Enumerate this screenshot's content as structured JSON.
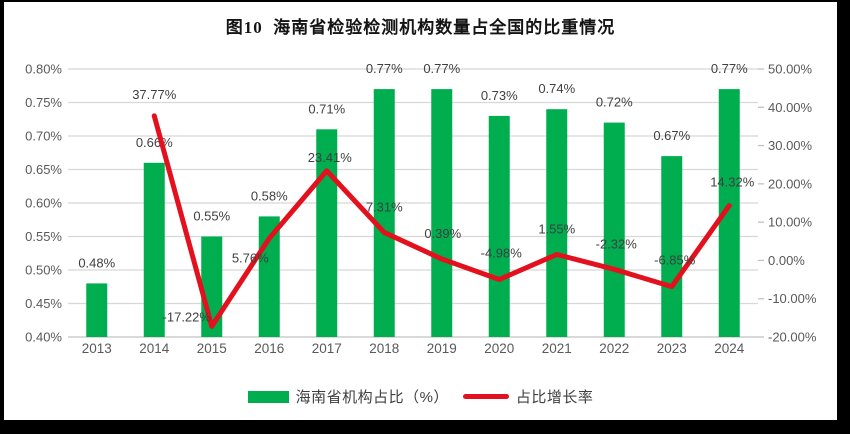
{
  "frame": {
    "background": "#000000",
    "panel_background": "#FFFFFF"
  },
  "chart_data": {
    "type": "bar+line combo",
    "title": "图10  海南省检验检测机构数量占全国的比重情况",
    "categories": [
      "2013",
      "2014",
      "2015",
      "2016",
      "2017",
      "2018",
      "2019",
      "2020",
      "2021",
      "2022",
      "2023",
      "2024"
    ],
    "series": [
      {
        "name": "海南省机构占比（%）",
        "type": "bar",
        "axis": "left",
        "color": "#00AE4F",
        "values": [
          0.48,
          0.66,
          0.55,
          0.58,
          0.71,
          0.77,
          0.77,
          0.73,
          0.74,
          0.72,
          0.67,
          0.77
        ],
        "labels": [
          "0.48%",
          "0.66%",
          "0.55%",
          "0.58%",
          "0.71%",
          "0.77%",
          "0.77%",
          "0.73%",
          "0.74%",
          "0.72%",
          "0.67%",
          "0.77%"
        ]
      },
      {
        "name": "占比增长率",
        "type": "line",
        "axis": "right",
        "color": "#E3101E",
        "values": [
          null,
          37.77,
          -17.22,
          5.76,
          23.41,
          7.31,
          0.39,
          -4.98,
          1.55,
          -2.32,
          -6.85,
          14.32
        ],
        "labels": [
          "",
          "37.77%",
          "-17.22%",
          "5.76%",
          "23.41%",
          "7.31%",
          "0.39%",
          "-4.98%",
          "1.55%",
          "-2.32%",
          "-6.85%",
          "14.32%"
        ],
        "label_dy": [
          0,
          -17,
          -5,
          24,
          -9,
          -21,
          -21,
          -22,
          -21,
          -21,
          -22,
          -19
        ],
        "label_dx": [
          0,
          0,
          -25,
          -19,
          3,
          0,
          1,
          2,
          0,
          2,
          3,
          3
        ]
      }
    ],
    "left_axis": {
      "min": 0.4,
      "max": 0.8,
      "ticks": [
        "0.80%",
        "0.75%",
        "0.70%",
        "0.65%",
        "0.60%",
        "0.55%",
        "0.50%",
        "0.45%",
        "0.40%"
      ]
    },
    "right_axis": {
      "min": -20,
      "max": 50,
      "ticks": [
        "50.00%",
        "40.00%",
        "30.00%",
        "20.00%",
        "10.00%",
        "0.00%",
        "-10.00%",
        "-20.00%"
      ]
    },
    "grid": true,
    "legend_position": "bottom",
    "style": {
      "gridline_color": "#D8D8D8",
      "baseline_color": "#C2C2C2",
      "axis_text_color": "#595959",
      "data_label_color": "#3F3F3F"
    }
  }
}
